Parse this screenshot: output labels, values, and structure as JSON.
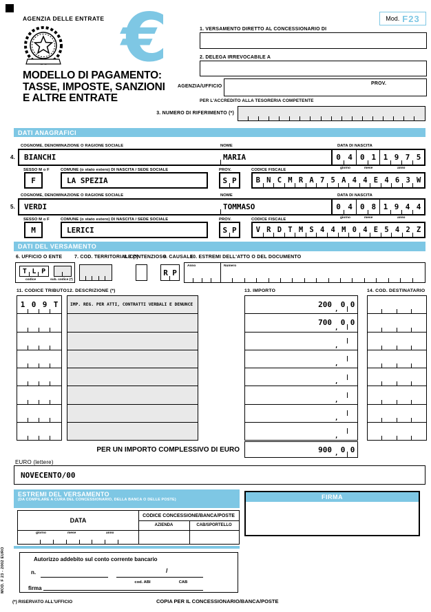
{
  "colors": {
    "accent": "#7ec7e4",
    "field_grey": "#e9e9e9"
  },
  "badge": {
    "mod_label": "Mod.",
    "code": "F23"
  },
  "header": {
    "agency": "AGENZIA DELLE ENTRATE",
    "title_lines": [
      "MODELLO DI PAGAMENTO:",
      "TASSE, IMPOSTE, SANZIONI",
      "E ALTRE ENTRATE"
    ],
    "euro_symbol": "€",
    "field1_label": "1. VERSAMENTO DIRETTO AL CONCESSIONARIO DI",
    "field1_value": "",
    "field2_label": "2. DELEGA IRREVOCABILE A",
    "field2_value": "",
    "agenzia_ufficio_label": "AGENZIA/UFFICIO",
    "agenzia_ufficio_value": "",
    "prov_label": "PROV.",
    "tesoreria_note": "PER L'ACCREDITO ALLA TESORERIA COMPETENTE",
    "field3_label": "3. NUMERO DI RIFERIMENTO (*)",
    "field3_value": ""
  },
  "bands": {
    "anagrafici": "DATI ANAGRAFICI",
    "versamento": "DATI DEL VERSAMENTO"
  },
  "person_labels": {
    "cognome": "COGNOME, DENOMINAZIONE O RAGIONE SOCIALE",
    "nome": "NOME",
    "data_nascita": "DATA DI NASCITA",
    "giorno": "giorno",
    "mese": "mese",
    "anno": "anno",
    "sesso": "SESSO M o F",
    "comune": "COMUNE (o stato estero) DI NASCITA / SEDE SOCIALE",
    "prov": "PROV.",
    "codice_fiscale": "CODICE FISCALE"
  },
  "persons": [
    {
      "number": "4.",
      "cognome": "BIANCHI",
      "nome": "MARIA",
      "nascita_giorno": "04",
      "nascita_mese": "01",
      "nascita_anno": "1975",
      "sesso": "F",
      "comune": "LA SPEZIA",
      "prov": "SP",
      "codice_fiscale": "BNCMRA75A44E463W"
    },
    {
      "number": "5.",
      "cognome": "VERDI",
      "nome": "TOMMASO",
      "nascita_giorno": "04",
      "nascita_mese": "08",
      "nascita_anno": "1944",
      "sesso": "M",
      "comune": "LERICI",
      "prov": "SP",
      "codice_fiscale": "VRDTMS44M04E542Z"
    }
  ],
  "versamento": {
    "f6_label": "6. UFFICIO O ENTE",
    "f6_codice_value": "TLP",
    "f6_codice_label": "codice",
    "f6_sub_label": "sub. codice (*)",
    "f6_sub_value": "",
    "f7_label": "7. COD. TERRITORIALE (*)",
    "f7_value": "",
    "f8_label": "8. CONTENZIOSO",
    "f8_value": "",
    "f9_label": "9. CAUSALE",
    "f9_value": "RP",
    "f10_label": "10. ESTREMI DELL'ATTO O DEL DOCUMENTO",
    "f10_anno_label": "Anno",
    "f10_numero_label": "Numero",
    "f10_anno_value": "",
    "f10_numero_value": ""
  },
  "table": {
    "col11_header": "11. CODICE TRIBUTO",
    "col12_header": "12. DESCRIZIONE (*)",
    "col13_header": "13. IMPORTO",
    "col14_header": "14. COD. DESTINATARIO",
    "comma": ",",
    "rows": [
      {
        "codice": "109T",
        "descrizione": "IMP. REG. PER ATTI, CONTRATTI VERBALI E DENUNCE",
        "importo_int": "200",
        "dec1": "0",
        "dec2": "0",
        "destinatario": ""
      },
      {
        "codice": "",
        "descrizione": "",
        "importo_int": "700",
        "dec1": "0",
        "dec2": "0",
        "destinatario": ""
      },
      {
        "codice": "",
        "descrizione": "",
        "importo_int": "",
        "dec1": "",
        "dec2": "",
        "destinatario": ""
      },
      {
        "codice": "",
        "descrizione": "",
        "importo_int": "",
        "dec1": "",
        "dec2": "",
        "destinatario": ""
      },
      {
        "codice": "",
        "descrizione": "",
        "importo_int": "",
        "dec1": "",
        "dec2": "",
        "destinatario": ""
      },
      {
        "codice": "",
        "descrizione": "",
        "importo_int": "",
        "dec1": "",
        "dec2": "",
        "destinatario": ""
      },
      {
        "codice": "",
        "descrizione": "",
        "importo_int": "",
        "dec1": "",
        "dec2": "",
        "destinatario": ""
      },
      {
        "codice": "",
        "descrizione": "",
        "importo_int": "",
        "dec1": "",
        "dec2": "",
        "destinatario": ""
      }
    ],
    "total_label": "PER UN IMPORTO COMPLESSIVO DI EURO",
    "total_int": "900",
    "total_dec1": "0",
    "total_dec2": "0"
  },
  "euro_lettere": {
    "label": "EURO (lettere)",
    "value": "NOVECENTO/00"
  },
  "estremi": {
    "title": "ESTREMI DEL VERSAMENTO",
    "subtitle": "(DA COMPILARE A CURA DEL CONCESSIONARIO, DELLA BANCA O DELLE POSTE)",
    "data_label": "DATA",
    "codice_label": "CODICE CONCESSIONE/BANCA/POSTE",
    "azienda_label": "AZIENDA",
    "cab_label": "CAB/SPORTELLO",
    "giorno": "giorno",
    "mese": "mese",
    "anno": "anno",
    "data_value": "",
    "azienda_value": "",
    "cab_value": ""
  },
  "firma": {
    "label": "FIRMA",
    "value": ""
  },
  "autorizzo": {
    "text": "Autorizzo addebito sul conto corrente bancario",
    "n_label": "n.",
    "n_value": "",
    "slash": "/",
    "abi_label": "cod. ABI",
    "cab_label": "CAB",
    "firma_label": "firma"
  },
  "footer": {
    "left": "(*) RISERVATO ALL'UFFICIO",
    "right": "COPIA PER IL CONCESSIONARIO/BANCA/POSTE",
    "side_text": "MOD. F 23 - 2002 EURO"
  }
}
